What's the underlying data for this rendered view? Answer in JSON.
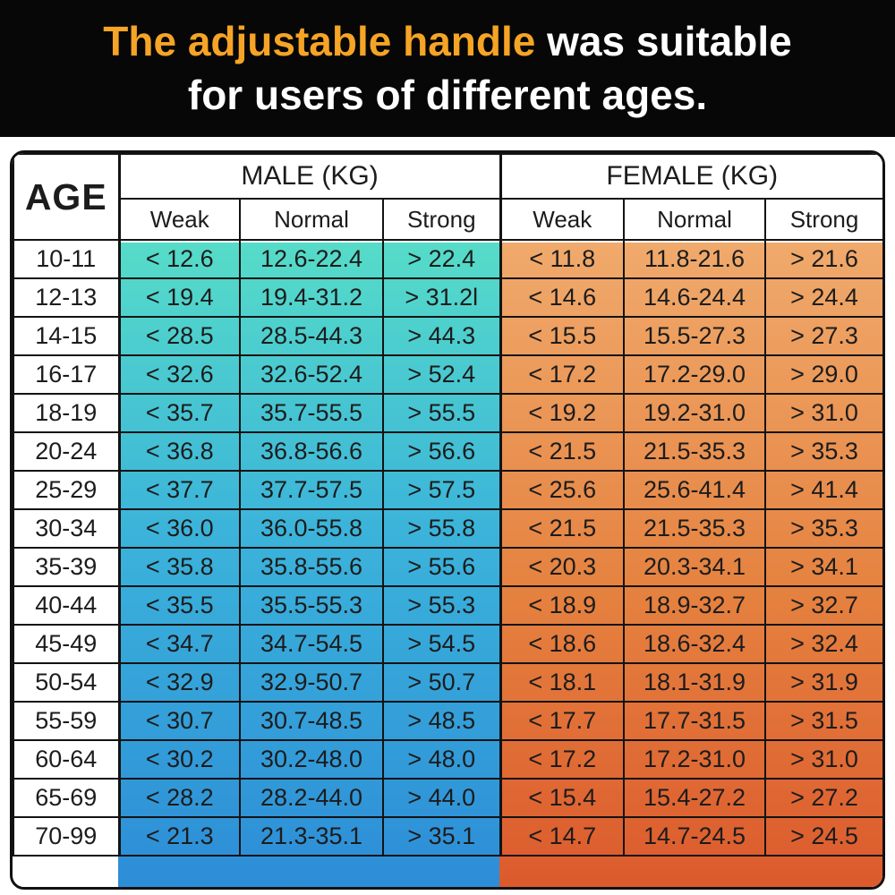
{
  "banner": {
    "line1_highlight": "The adjustable handle",
    "line1_rest": " was suitable",
    "line2": "for users of different ages.",
    "highlight_color": "#f5a425",
    "text_color": "#ffffff",
    "background_color": "#070707"
  },
  "chart_data": {
    "type": "table",
    "title": "The adjustable handle was suitable for users of different ages.",
    "unit": "KG",
    "corner_header": "AGE",
    "group_headers": [
      {
        "label": "MALE (KG)"
      },
      {
        "label": "FEMALE (KG)"
      }
    ],
    "sub_headers": [
      "Weak",
      "Normal",
      "Strong",
      "Weak",
      "Normal",
      "Strong"
    ],
    "rows": [
      {
        "age": "10-11",
        "male": [
          "< 12.6",
          "12.6-22.4",
          "> 22.4"
        ],
        "female": [
          "< 11.8",
          "11.8-21.6",
          "> 21.6"
        ]
      },
      {
        "age": "12-13",
        "male": [
          "< 19.4",
          "19.4-31.2",
          "> 31.2l"
        ],
        "female": [
          "< 14.6",
          "14.6-24.4",
          "> 24.4"
        ]
      },
      {
        "age": "14-15",
        "male": [
          "< 28.5",
          "28.5-44.3",
          "> 44.3"
        ],
        "female": [
          "< 15.5",
          "15.5-27.3",
          "> 27.3"
        ]
      },
      {
        "age": "16-17",
        "male": [
          "< 32.6",
          "32.6-52.4",
          "> 52.4"
        ],
        "female": [
          "< 17.2",
          "17.2-29.0",
          "> 29.0"
        ]
      },
      {
        "age": "18-19",
        "male": [
          "< 35.7",
          "35.7-55.5",
          "> 55.5"
        ],
        "female": [
          "< 19.2",
          "19.2-31.0",
          "> 31.0"
        ]
      },
      {
        "age": "20-24",
        "male": [
          "< 36.8",
          "36.8-56.6",
          "> 56.6"
        ],
        "female": [
          "< 21.5",
          "21.5-35.3",
          "> 35.3"
        ]
      },
      {
        "age": "25-29",
        "male": [
          "< 37.7",
          "37.7-57.5",
          "> 57.5"
        ],
        "female": [
          "< 25.6",
          "25.6-41.4",
          "> 41.4"
        ]
      },
      {
        "age": "30-34",
        "male": [
          "< 36.0",
          "36.0-55.8",
          "> 55.8"
        ],
        "female": [
          "< 21.5",
          "21.5-35.3",
          "> 35.3"
        ]
      },
      {
        "age": "35-39",
        "male": [
          "< 35.8",
          "35.8-55.6",
          "> 55.6"
        ],
        "female": [
          "< 20.3",
          "20.3-34.1",
          "> 34.1"
        ]
      },
      {
        "age": "40-44",
        "male": [
          "< 35.5",
          "35.5-55.3",
          "> 55.3"
        ],
        "female": [
          "< 18.9",
          "18.9-32.7",
          "> 32.7"
        ]
      },
      {
        "age": "45-49",
        "male": [
          "< 34.7",
          "34.7-54.5",
          "> 54.5"
        ],
        "female": [
          "< 18.6",
          "18.6-32.4",
          "> 32.4"
        ]
      },
      {
        "age": "50-54",
        "male": [
          "< 32.9",
          "32.9-50.7",
          "> 50.7"
        ],
        "female": [
          "< 18.1",
          "18.1-31.9",
          "> 31.9"
        ]
      },
      {
        "age": "55-59",
        "male": [
          "< 30.7",
          "30.7-48.5",
          "> 48.5"
        ],
        "female": [
          "< 17.7",
          "17.7-31.5",
          "> 31.5"
        ]
      },
      {
        "age": "60-64",
        "male": [
          "< 30.2",
          "30.2-48.0",
          "> 48.0"
        ],
        "female": [
          "< 17.2",
          "17.2-31.0",
          "> 31.0"
        ]
      },
      {
        "age": "65-69",
        "male": [
          "< 28.2",
          "28.2-44.0",
          "> 44.0"
        ],
        "female": [
          "< 15.4",
          "15.4-27.2",
          "> 27.2"
        ]
      },
      {
        "age": "70-99",
        "male": [
          "< 21.3",
          "21.3-35.1",
          "> 35.1"
        ],
        "female": [
          "< 14.7",
          "14.7-24.5",
          "> 24.5"
        ]
      }
    ],
    "colors": {
      "male_gradient_top": "#56dcc8",
      "male_gradient_mid": "#3bb3da",
      "male_gradient_bottom": "#2d8dd8",
      "female_gradient_top": "#f0aa6c",
      "female_gradient_mid": "#e5813f",
      "female_gradient_bottom": "#dc5a2d",
      "grid": "#131313",
      "header_background": "#ffffff"
    },
    "layout": {
      "grid": "on",
      "legend": "none"
    }
  }
}
